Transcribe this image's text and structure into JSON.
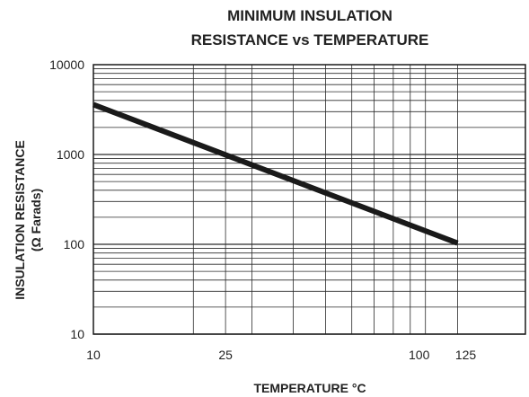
{
  "chart_data": {
    "type": "line",
    "title_lines": [
      "MINIMUM INSULATION",
      "RESISTANCE vs TEMPERATURE"
    ],
    "xlabel": "TEMPERATURE °C",
    "ylabel_lines": [
      "INSULATION RESISTANCE",
      "(Ω Farads)"
    ],
    "x_scale": "log",
    "y_scale": "log",
    "xlim": [
      10,
      200
    ],
    "ylim": [
      10,
      10000
    ],
    "x_ticks": [
      {
        "value": 10,
        "label": "10"
      },
      {
        "value": 25,
        "label": "25"
      },
      {
        "value": 100,
        "label": "100"
      },
      {
        "value": 125,
        "label": "125"
      }
    ],
    "y_ticks": [
      {
        "value": 10,
        "label": "10"
      },
      {
        "value": 100,
        "label": "100"
      },
      {
        "value": 1000,
        "label": "1000"
      },
      {
        "value": 10000,
        "label": "10000"
      }
    ],
    "x_gridlines": [
      10,
      20,
      25,
      30,
      40,
      50,
      60,
      70,
      80,
      90,
      100,
      125,
      200
    ],
    "grid": true,
    "series": [
      {
        "points": [
          {
            "x": 10,
            "y": 3600
          },
          {
            "x": 125,
            "y": 103
          }
        ],
        "color": "#1a1a1a"
      }
    ]
  }
}
